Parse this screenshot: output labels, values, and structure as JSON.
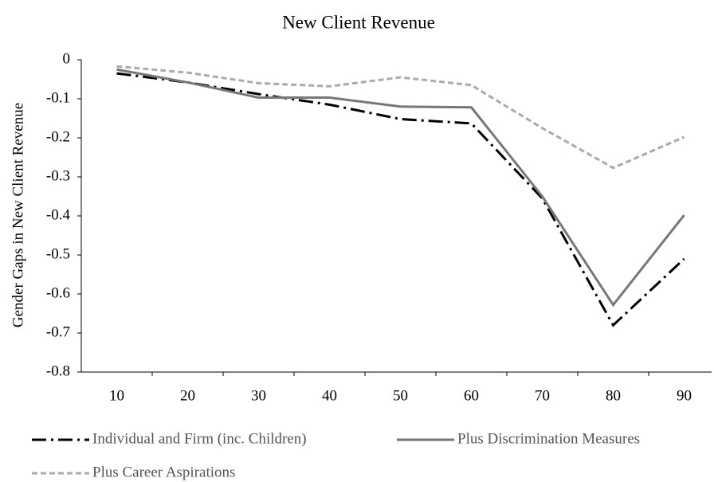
{
  "chart_data": {
    "type": "line",
    "title": "New Client Revenue",
    "y_label": "Gender Gaps in New Client Revenue",
    "categories": [
      "10",
      "20",
      "30",
      "40",
      "50",
      "60",
      "70",
      "80",
      "90"
    ],
    "series": [
      {
        "name": "Individual and Firm (inc. Children)",
        "color": "#000000",
        "dash": "dash-dot",
        "values": [
          -0.035,
          -0.058,
          -0.088,
          -0.115,
          -0.152,
          -0.163,
          -0.355,
          -0.68,
          -0.51
        ]
      },
      {
        "name": "Plus Discrimination Measures",
        "color": "#777777",
        "dash": "solid",
        "values": [
          -0.025,
          -0.058,
          -0.097,
          -0.097,
          -0.12,
          -0.122,
          -0.35,
          -0.628,
          -0.398
        ]
      },
      {
        "name": "Plus Career Aspirations",
        "color": "#aaaaaa",
        "dash": "dashed",
        "values": [
          -0.017,
          -0.033,
          -0.06,
          -0.068,
          -0.045,
          -0.065,
          -0.175,
          -0.277,
          -0.198
        ]
      }
    ],
    "ylim": [
      -0.8,
      0
    ],
    "yticks": [
      0,
      -0.1,
      -0.2,
      -0.3,
      -0.4,
      -0.5,
      -0.6,
      -0.7,
      -0.8
    ],
    "grid": false
  }
}
